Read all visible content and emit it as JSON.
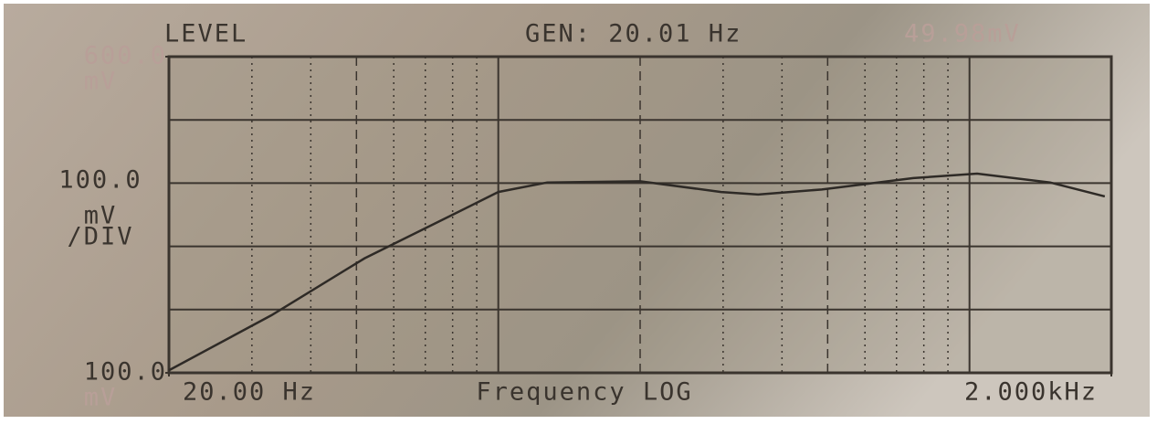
{
  "chart_data": {
    "type": "line",
    "title": "LEVEL",
    "generator": "GEN: 20.01 Hz",
    "amplitude": "49.98mV",
    "xlabel": "Frequency LOG",
    "xlog": true,
    "x": [
      20,
      33,
      52,
      82,
      100,
      127,
      200,
      297,
      356,
      486,
      760,
      1038,
      1483,
      1937
    ],
    "values": [
      104,
      191,
      281,
      354,
      386,
      401,
      403,
      386,
      382,
      390,
      408,
      415,
      401,
      379
    ],
    "color": "#2e2a26",
    "xlim": [
      20,
      2000
    ],
    "xticks": [
      {
        "value": 20,
        "label": "20.00 Hz"
      },
      {
        "value": 2000,
        "label": "2.000kHz"
      }
    ],
    "xgrid": [
      30,
      40,
      50,
      60,
      70,
      80,
      90,
      100,
      200,
      300,
      400,
      500,
      600,
      700,
      800,
      900,
      1000
    ],
    "xgrid_solid": [
      100,
      1000
    ],
    "xgrid_dashed": [
      50,
      200,
      500
    ],
    "ylim": [
      100,
      600
    ],
    "yticks": [
      {
        "value": 100,
        "label": "100.0"
      },
      {
        "value": 600,
        "label": "600.0"
      }
    ],
    "y_unit": "mV",
    "ygrid": [
      100,
      200,
      300,
      400,
      500,
      600
    ],
    "scale_lines": [
      "100.0",
      "mV",
      "/DIV"
    ]
  }
}
